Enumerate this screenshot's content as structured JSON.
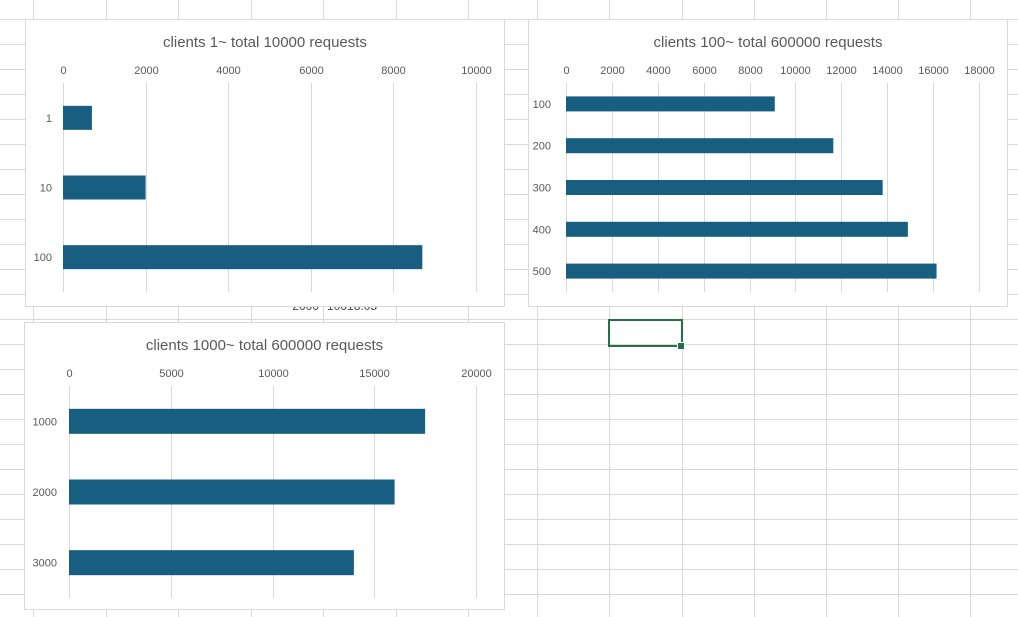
{
  "sheet": {
    "visible_cells": [
      {
        "text": "2000",
        "col": 3,
        "row": 12,
        "align": "right"
      },
      {
        "text": "10018.05",
        "col": 4,
        "row": 12,
        "align": "left"
      }
    ],
    "gridline_color": "#d9d9d9",
    "active_cell_color": "#217346"
  },
  "chart_data": [
    {
      "type": "bar",
      "orientation": "horizontal",
      "title": "clients 1~ total 10000 requests",
      "categories": [
        "1",
        "10",
        "100"
      ],
      "values": [
        700,
        2000,
        8700
      ],
      "xlim": [
        0,
        10000
      ],
      "x_ticks": [
        "0",
        "2000",
        "4000",
        "6000",
        "8000",
        "10000"
      ],
      "xlabel": "",
      "ylabel": "",
      "axis_position": "top",
      "grid": true,
      "legend": "none",
      "bar_color": "#175e80"
    },
    {
      "type": "bar",
      "orientation": "horizontal",
      "title": "clients 100~ total 600000 requests",
      "categories": [
        "100",
        "200",
        "300",
        "400",
        "500"
      ],
      "values": [
        9100,
        11650,
        13800,
        14900,
        16150
      ],
      "xlim": [
        0,
        18000
      ],
      "x_ticks": [
        "0",
        "2000",
        "4000",
        "6000",
        "8000",
        "10000",
        "12000",
        "14000",
        "16000",
        "18000"
      ],
      "xlabel": "",
      "ylabel": "",
      "axis_position": "top",
      "grid": true,
      "legend": "none",
      "bar_color": "#175e80"
    },
    {
      "type": "bar",
      "orientation": "horizontal",
      "title": "clients 1000~ total 600000 requests",
      "categories": [
        "1000",
        "2000",
        "3000"
      ],
      "values": [
        17500,
        16000,
        14000
      ],
      "xlim": [
        0,
        20000
      ],
      "x_ticks": [
        "0",
        "5000",
        "10000",
        "15000",
        "20000"
      ],
      "xlabel": "",
      "ylabel": "",
      "axis_position": "top",
      "grid": true,
      "legend": "none",
      "bar_color": "#175e80"
    }
  ]
}
